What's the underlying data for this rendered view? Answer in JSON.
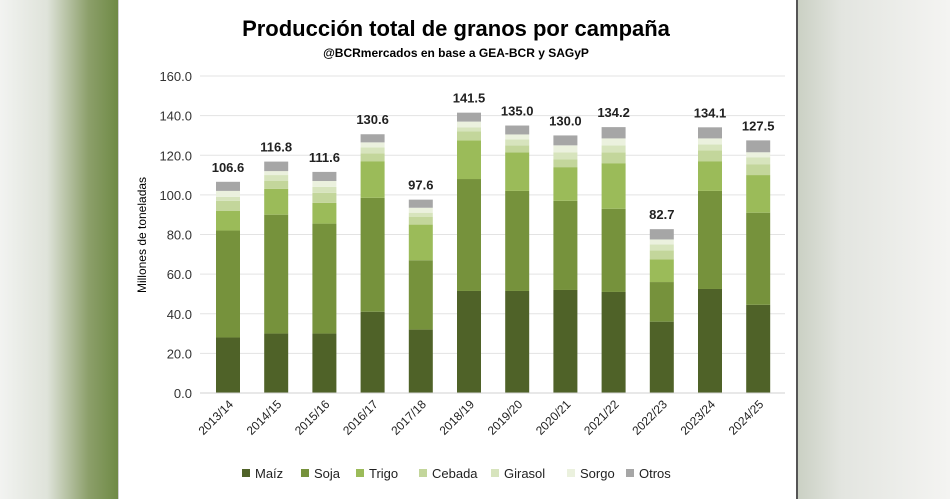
{
  "chart_data": {
    "type": "bar",
    "stacked": true,
    "title": "Producción total de granos por campaña",
    "subtitle": "@BCRmercados en base a GEA-BCR y SAGyP",
    "xlabel": "",
    "ylabel": "Millones de toneladas",
    "ylim": [
      0,
      160
    ],
    "yticks": [
      "0.0",
      "20.0",
      "40.0",
      "60.0",
      "80.0",
      "100.0",
      "120.0",
      "140.0",
      "160.0"
    ],
    "grid": true,
    "legend_position": "bottom",
    "categories": [
      "2013/14",
      "2014/15",
      "2015/16",
      "2016/17",
      "2017/18",
      "2018/19",
      "2019/20",
      "2020/21",
      "2021/22",
      "2022/23",
      "2023/24",
      "2024/25"
    ],
    "totals": [
      "106.6",
      "116.8",
      "111.6",
      "130.6",
      "97.6",
      "141.5",
      "135.0",
      "130.0",
      "134.2",
      "82.7",
      "134.1",
      "127.5"
    ],
    "series": [
      {
        "name": "Maíz",
        "color": "#4f6228",
        "values": [
          28,
          30,
          30,
          41,
          32,
          51.5,
          51.5,
          52,
          51,
          36,
          52.5,
          44.5
        ]
      },
      {
        "name": "Soja",
        "color": "#76923c",
        "values": [
          54,
          60,
          55.5,
          57.5,
          35,
          56.5,
          50.5,
          45,
          42,
          20,
          49.5,
          46.5
        ]
      },
      {
        "name": "Trigo",
        "color": "#9bbb59",
        "values": [
          10,
          13,
          10.5,
          18.5,
          18,
          19.5,
          19.5,
          17,
          23,
          11.5,
          15,
          19
        ]
      },
      {
        "name": "Cebada",
        "color": "#c3d69b",
        "values": [
          5,
          4,
          5,
          4,
          4,
          4.5,
          3.5,
          4,
          5.5,
          4.5,
          5.5,
          5.5
        ]
      },
      {
        "name": "Girasol",
        "color": "#d7e4bd",
        "values": [
          2,
          3,
          3,
          3,
          2,
          2,
          3,
          3.5,
          3.5,
          3,
          3,
          3.5
        ]
      },
      {
        "name": "Sorgo",
        "color": "#ebf1de",
        "values": [
          3,
          2,
          3,
          2.5,
          2.5,
          3,
          2.5,
          3.5,
          3.5,
          2.5,
          3,
          2.5
        ]
      },
      {
        "name": "Otros",
        "color": "#a6a6a6",
        "values": [
          4.6,
          4.8,
          4.6,
          4.1,
          4.1,
          4.5,
          4.5,
          5,
          5.7,
          5.2,
          5.6,
          6
        ]
      }
    ]
  }
}
